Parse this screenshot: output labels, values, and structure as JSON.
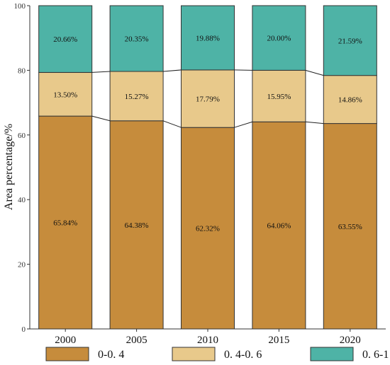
{
  "chart_data": {
    "type": "bar",
    "stacked": true,
    "categories": [
      "2000",
      "2005",
      "2010",
      "2015",
      "2020"
    ],
    "series": [
      {
        "name": "0-0. 4",
        "color": "#C68C3C",
        "values": [
          65.84,
          64.38,
          62.32,
          64.06,
          63.55
        ],
        "labels": [
          "65.84%",
          "64.38%",
          "62.32%",
          "64.06%",
          "63.55%"
        ]
      },
      {
        "name": "0. 4-0. 6",
        "color": "#E8C98B",
        "values": [
          13.5,
          15.27,
          17.79,
          15.95,
          14.86
        ],
        "labels": [
          "13.50%",
          "15.27%",
          "17.79%",
          "15.95%",
          "14.86%"
        ]
      },
      {
        "name": "0. 6-1",
        "color": "#4EB3A6",
        "values": [
          20.66,
          20.35,
          19.88,
          20.0,
          21.59
        ],
        "labels": [
          "20.66%",
          "20.35%",
          "19.88%",
          "20.00%",
          "21.59%"
        ]
      }
    ],
    "ylabel": "Area percentage/%",
    "ylim": [
      0,
      100
    ],
    "yticks": [
      0,
      20,
      40,
      60,
      80,
      100
    ],
    "grid": false,
    "legend_position": "bottom",
    "connector_lines": true
  }
}
